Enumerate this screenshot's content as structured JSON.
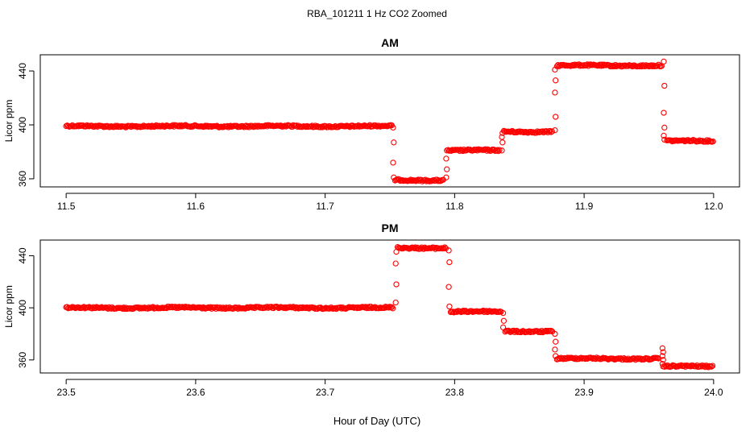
{
  "figure": {
    "title": "RBA_101211  1 Hz CO2 Zoomed",
    "xlabel": "Hour of Day (UTC)"
  },
  "chart_data": [
    {
      "type": "scatter",
      "title": "AM",
      "ylabel": "Licor ppm",
      "xlim": [
        11.48,
        12.02
      ],
      "ylim": [
        354,
        452
      ],
      "xticks": [
        "11.5",
        "11.6",
        "11.7",
        "11.8",
        "11.9",
        "12.0"
      ],
      "yticks": [
        "360",
        "400",
        "440"
      ],
      "grid": false,
      "marker": "open-circle",
      "color": "#ff0000",
      "segments": [
        {
          "x": [
            11.5,
            11.752
          ],
          "y": 399
        },
        {
          "x": [
            11.754,
            11.792
          ],
          "y": 359
        },
        {
          "x": [
            11.795,
            11.835
          ],
          "y": 381
        },
        {
          "x": [
            11.838,
            11.876
          ],
          "y": 395
        },
        {
          "x": [
            11.879,
            11.96
          ],
          "y": 444
        },
        {
          "x": [
            11.964,
            12.0
          ],
          "y": 388
        }
      ],
      "transitions": [
        {
          "x": 11.7525,
          "y": [
            398,
            387,
            372,
            361
          ]
        },
        {
          "x": 11.7935,
          "y": [
            361,
            367,
            375,
            381
          ]
        },
        {
          "x": 11.8365,
          "y": [
            381,
            387,
            391,
            394
          ]
        },
        {
          "x": 11.8775,
          "y": [
            396,
            406,
            424,
            433,
            441
          ]
        },
        {
          "x": 11.9615,
          "y": [
            447,
            429,
            409,
            398,
            392,
            389
          ]
        }
      ]
    },
    {
      "type": "scatter",
      "title": "PM",
      "ylabel": "Licor ppm",
      "xlim": [
        23.48,
        24.02
      ],
      "ylim": [
        350,
        452
      ],
      "xticks": [
        "23.5",
        "23.6",
        "23.7",
        "23.8",
        "23.9",
        "24.0"
      ],
      "yticks": [
        "360",
        "400",
        "440"
      ],
      "grid": false,
      "marker": "open-circle",
      "color": "#ff0000",
      "segments": [
        {
          "x": [
            23.5,
            23.753
          ],
          "y": 400
        },
        {
          "x": [
            23.756,
            23.794
          ],
          "y": 446
        },
        {
          "x": [
            23.797,
            23.836
          ],
          "y": 397
        },
        {
          "x": [
            23.839,
            23.876
          ],
          "y": 382
        },
        {
          "x": [
            23.879,
            23.958
          ],
          "y": 361
        },
        {
          "x": [
            23.962,
            24.0
          ],
          "y": 355
        }
      ],
      "transitions": [
        {
          "x": 23.7545,
          "y": [
            404,
            418,
            434,
            443
          ]
        },
        {
          "x": 23.7955,
          "y": [
            444,
            435,
            416,
            401
          ]
        },
        {
          "x": 23.8375,
          "y": [
            396,
            390,
            385
          ]
        },
        {
          "x": 23.8775,
          "y": [
            380,
            374,
            368,
            363
          ]
        },
        {
          "x": 23.9605,
          "y": [
            369,
            366,
            363,
            360,
            357,
            355
          ]
        }
      ]
    }
  ]
}
